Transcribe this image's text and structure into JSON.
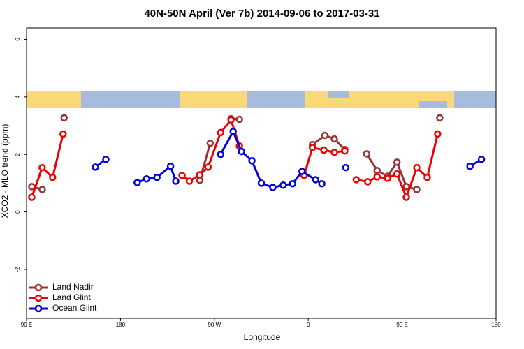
{
  "chart_data": {
    "type": "line",
    "title": "40N-50N April (Ver 7b)   2014-09-06 to 2017-03-31",
    "x_label": "Longitude",
    "y_label": "XCO2 - MLO trend (ppm)",
    "xlim": [
      90,
      540
    ],
    "ylim": [
      -3.7,
      6.4
    ],
    "xticks": [
      {
        "value": 90,
        "label": "90 E"
      },
      {
        "value": 180,
        "label": "180"
      },
      {
        "value": 270,
        "label": "90 W"
      },
      {
        "value": 360,
        "label": "0"
      },
      {
        "value": 450,
        "label": "90 E"
      },
      {
        "value": 540,
        "label": "180"
      }
    ],
    "yticks": [
      -2,
      0,
      2,
      4,
      6
    ],
    "legend": "bottom-left",
    "series": [
      {
        "name": "Land Nadir",
        "color": "#993333",
        "x": [
          95,
          105,
          null,
          126,
          null,
          256,
          266,
          null,
          286,
          294,
          null,
          364,
          376,
          385,
          395,
          null,
          416,
          426,
          436,
          445,
          454,
          464,
          null,
          486
        ],
        "values": [
          0.88,
          0.78,
          null,
          3.27,
          null,
          1.1,
          2.39,
          null,
          3.24,
          3.22,
          null,
          2.34,
          2.66,
          2.54,
          2.17,
          null,
          2.02,
          1.44,
          1.24,
          1.73,
          0.88,
          0.78,
          null,
          3.27
        ]
      },
      {
        "name": "Land Glint",
        "color": "#ee0000",
        "x": [
          95,
          105,
          115,
          125,
          null,
          239,
          246,
          256,
          264,
          276,
          286,
          294,
          null,
          356,
          364,
          375,
          385,
          395,
          null,
          406,
          417,
          426,
          436,
          445,
          454,
          464,
          474,
          484
        ],
        "values": [
          0.51,
          1.54,
          1.2,
          2.71,
          null,
          1.27,
          1.07,
          1.29,
          1.56,
          2.76,
          3.2,
          2.29,
          null,
          1.27,
          2.24,
          2.15,
          2.07,
          2.12,
          null,
          1.12,
          1.05,
          1.22,
          1.17,
          1.32,
          0.51,
          1.54,
          1.2,
          2.71
        ]
      },
      {
        "name": "Ocean Glint",
        "color": "#0000dd",
        "x": [
          156,
          166,
          null,
          196,
          205,
          215,
          228,
          233,
          null,
          276,
          288,
          296,
          306,
          315,
          326,
          336,
          345,
          354,
          367,
          373,
          null,
          396,
          null,
          515,
          526
        ],
        "values": [
          1.56,
          1.83,
          null,
          1.02,
          1.15,
          1.2,
          1.59,
          1.07,
          null,
          2.0,
          2.8,
          2.1,
          1.78,
          1.0,
          0.85,
          0.93,
          0.98,
          1.41,
          1.12,
          0.98,
          null,
          1.54,
          null,
          1.59,
          1.83
        ]
      }
    ]
  }
}
